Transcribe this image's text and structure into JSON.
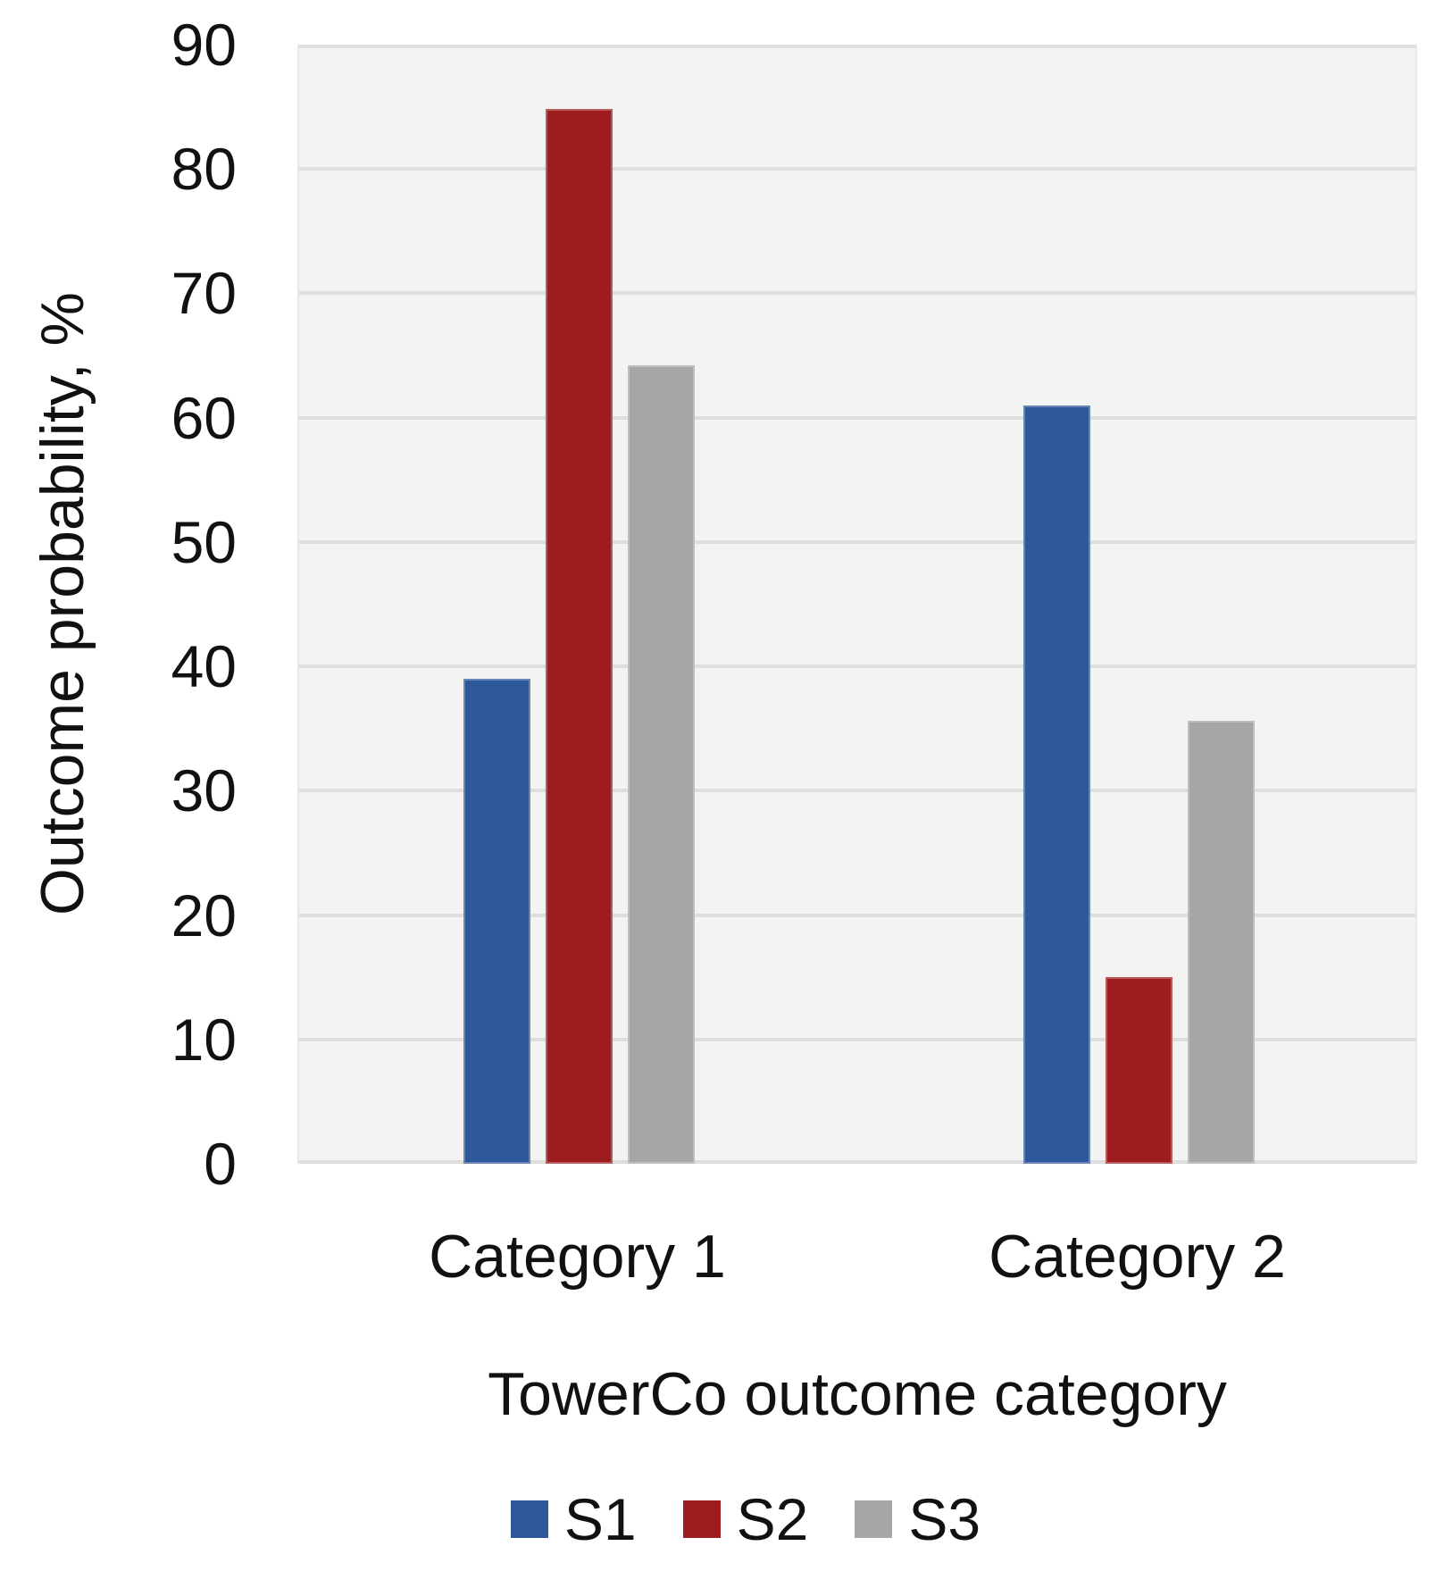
{
  "chart_data": {
    "type": "bar",
    "title": "",
    "categories": [
      "Category 1",
      "Category 2"
    ],
    "series": [
      {
        "name": "S1",
        "color": "#2d5899",
        "values": [
          39,
          61
        ]
      },
      {
        "name": "S2",
        "color": "#9d1c1e",
        "values": [
          84.8,
          15
        ]
      },
      {
        "name": "S3",
        "color": "#a6a6a6",
        "values": [
          64.2,
          35.6
        ]
      }
    ],
    "xlabel": "TowerCo outcome category",
    "ylabel": "Outcome probability, %",
    "ylim": [
      0,
      90
    ],
    "yticks": [
      0,
      10,
      20,
      30,
      40,
      50,
      60,
      70,
      80,
      90
    ],
    "grid": true,
    "legend_position": "bottom",
    "plot_background": "#f3f3f2",
    "gridline_color": "#dededd",
    "text_color": "#111111"
  }
}
